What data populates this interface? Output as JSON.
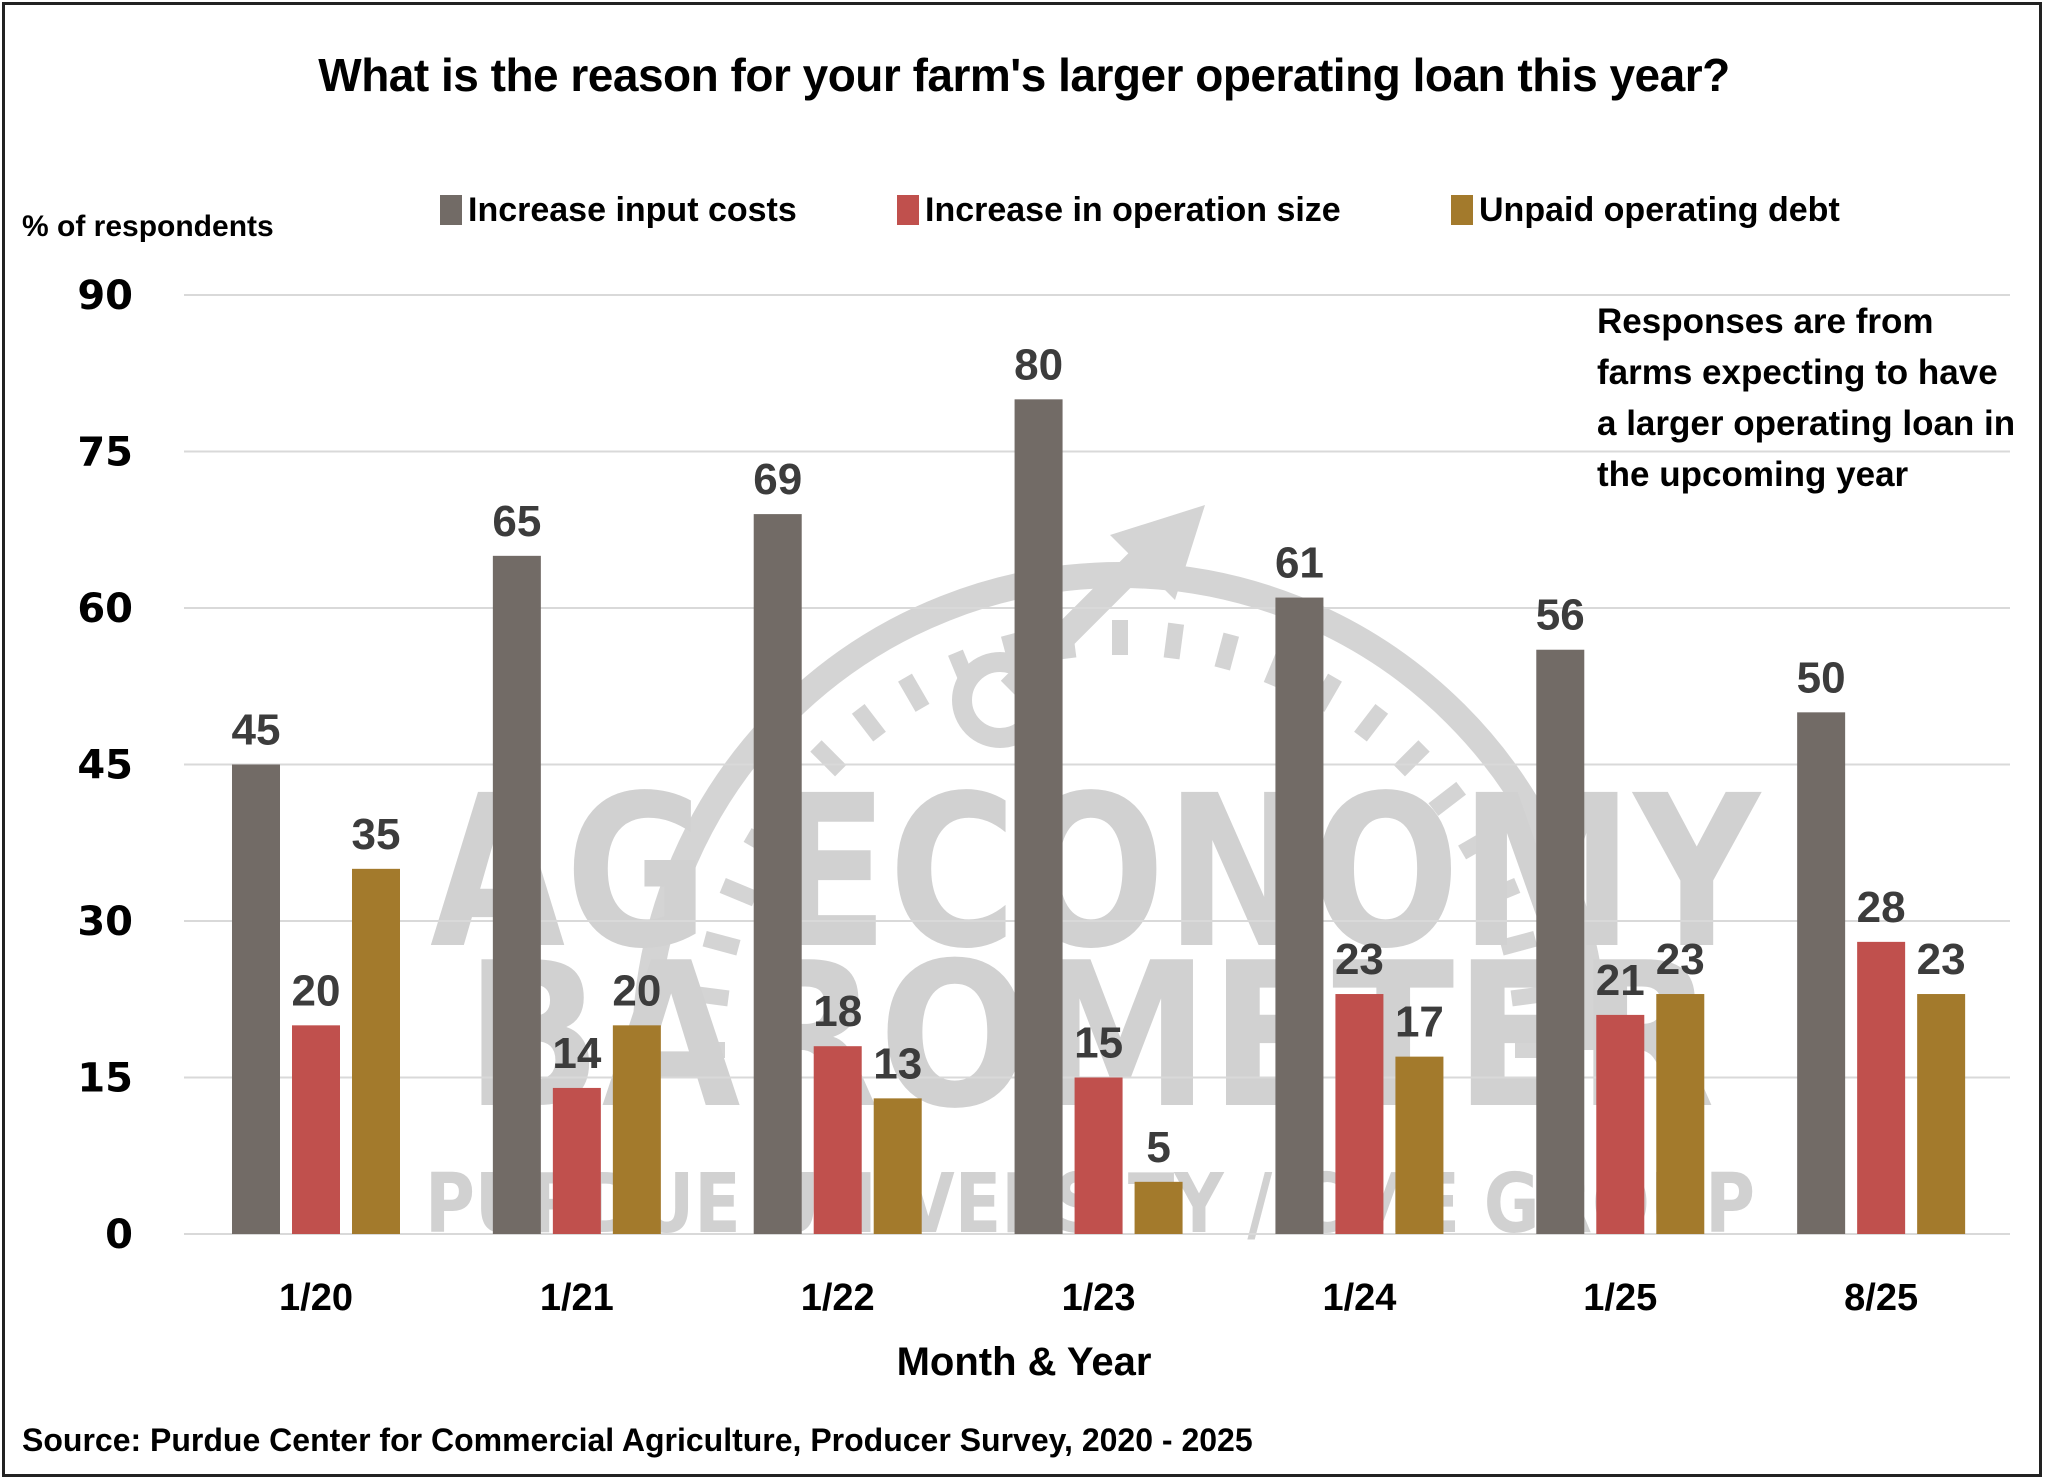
{
  "title": "What is the reason for your farm's larger operating loan this year?",
  "y_axis_label": "% of respondents",
  "x_axis_label": "Month & Year",
  "note": "Responses are from farms expecting to have a larger operating loan in the upcoming year",
  "source": "Source: Purdue Center for Commercial Agriculture, Producer Survey, 2020 - 2025",
  "watermark": {
    "line1": "AG ECONOMY",
    "line2": "BAROMETER",
    "line3": "PURDUE UNIVERSITY / CME GROUP"
  },
  "legend": [
    {
      "label": "Increase input costs",
      "color": "#726b66"
    },
    {
      "label": "Increase in operation size",
      "color": "#c0504d"
    },
    {
      "label": "Unpaid operating debt",
      "color": "#a37a2c"
    }
  ],
  "chart_data": {
    "type": "bar",
    "title": "What is the reason for your farm's larger operating loan this year?",
    "xlabel": "Month & Year",
    "ylabel": "% of respondents",
    "categories": [
      "1/20",
      "1/21",
      "1/22",
      "1/23",
      "1/24",
      "1/25",
      "8/25"
    ],
    "series": [
      {
        "name": "Increase input costs",
        "color": "#726b66",
        "values": [
          45,
          65,
          69,
          80,
          61,
          56,
          50
        ]
      },
      {
        "name": "Increase in operation size",
        "color": "#c0504d",
        "values": [
          20,
          14,
          18,
          15,
          23,
          21,
          28
        ]
      },
      {
        "name": "Unpaid operating debt",
        "color": "#a37a2c",
        "values": [
          35,
          20,
          13,
          5,
          17,
          23,
          23
        ]
      }
    ],
    "ylim": [
      0,
      90
    ],
    "yticks": [
      0,
      15,
      30,
      45,
      60,
      75,
      90
    ],
    "grid": true,
    "legend_position": "top",
    "annotations": [
      "Responses are from farms expecting to have a larger operating loan in the upcoming year"
    ]
  }
}
